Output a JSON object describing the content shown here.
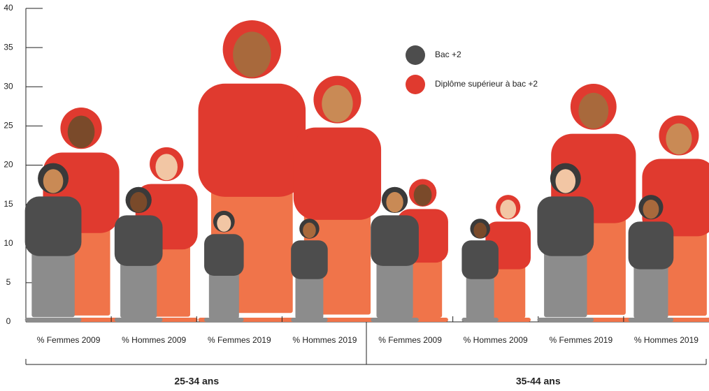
{
  "chart_data": {
    "type": "pictogram",
    "categories": [
      "% Femmes 2009",
      "% Hommes 2009",
      "% Femmes 2019",
      "% Hommes 2019",
      "% Femmes 2009",
      "% Hommes 2009",
      "% Femmes 2019",
      "% Hommes 2019"
    ],
    "groups": [
      "25-34 ans",
      "35-44 ans"
    ],
    "series": [
      {
        "name": "Bac +2",
        "color": "#4d4d4d",
        "values": [
          20,
          17,
          14,
          13,
          17,
          13,
          20,
          16
        ]
      },
      {
        "name": "Diplôme supérieur à bac +2",
        "color": "#e03a2f",
        "values": [
          27,
          22,
          38,
          31,
          18,
          16,
          30,
          26
        ]
      }
    ],
    "ylim": [
      0,
      40
    ],
    "yticks": [
      0,
      5,
      10,
      15,
      20,
      25,
      30,
      35,
      40
    ]
  }
}
